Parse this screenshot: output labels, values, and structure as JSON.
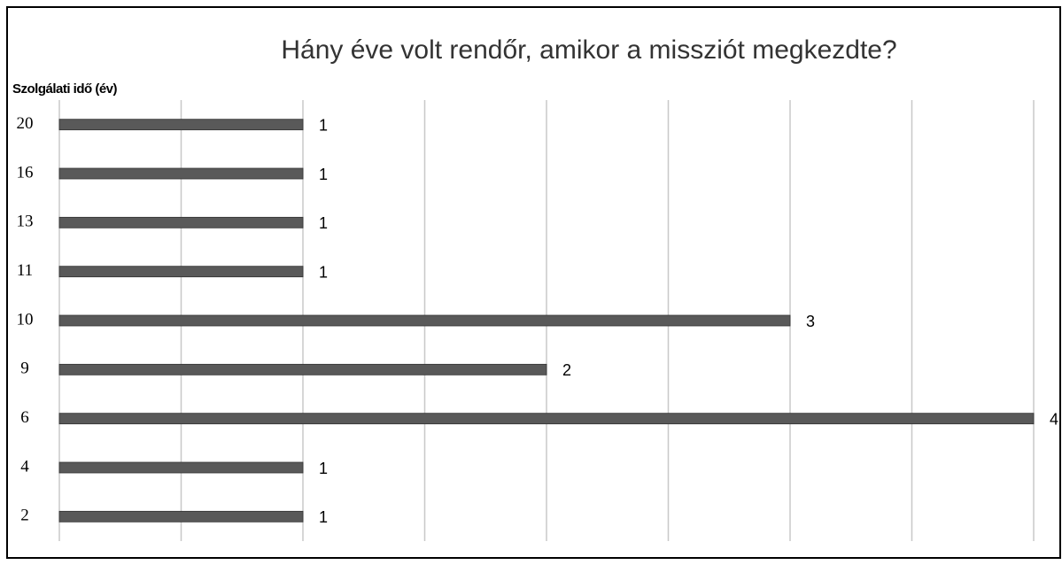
{
  "chart_data": {
    "type": "bar",
    "orientation": "horizontal",
    "title": "Hány éve volt rendőr, amikor a missziót megkezdte?",
    "y_label": "Szolgálati idő (év)",
    "categories": [
      "20",
      "16",
      "13",
      "11",
      "10",
      "9",
      "6",
      "4",
      "2"
    ],
    "values": [
      1,
      1,
      1,
      1,
      3,
      2,
      4,
      1,
      1
    ],
    "color": "#595959",
    "xlim": [
      0,
      4
    ],
    "xticks": [
      0,
      0.5,
      1,
      1.5,
      2,
      2.5,
      3,
      3.5,
      4
    ],
    "grid": true
  }
}
